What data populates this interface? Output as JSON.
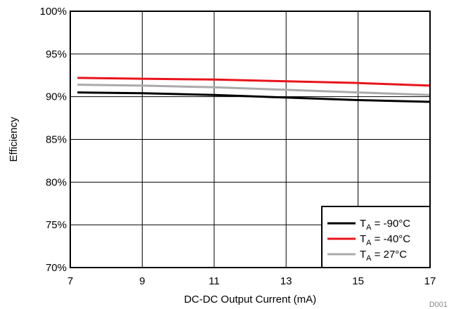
{
  "chart_data": {
    "type": "line",
    "xlabel": "DC-DC Output Current (mA)",
    "ylabel": "Efficiency",
    "xlim": [
      7,
      17
    ],
    "ylim": [
      70,
      100
    ],
    "x_ticks": [
      "7",
      "9",
      "11",
      "13",
      "15",
      "17"
    ],
    "y_ticks": [
      "70%",
      "75%",
      "80%",
      "85%",
      "90%",
      "95%",
      "100%"
    ],
    "grid": true,
    "legend_position": "bottom-right",
    "series": [
      {
        "name": "T_A = -90°C",
        "legend_main": "T",
        "legend_sub": "A",
        "legend_rest": " = -90°C",
        "color": "#000000",
        "x": [
          7.2,
          9,
          11,
          13,
          15,
          17
        ],
        "y": [
          90.5,
          90.4,
          90.2,
          89.9,
          89.6,
          89.4
        ]
      },
      {
        "name": "T_A = -40°C",
        "legend_main": "T",
        "legend_sub": "A",
        "legend_rest": " = -40°C",
        "color": "#e8141b",
        "x": [
          7.2,
          9,
          11,
          13,
          15,
          17
        ],
        "y": [
          92.2,
          92.1,
          92.0,
          91.8,
          91.6,
          91.3
        ]
      },
      {
        "name": "T_A = 27°C",
        "legend_main": "T",
        "legend_sub": "A",
        "legend_rest": " = 27°C",
        "color": "#aaaaaa",
        "x": [
          7.2,
          9,
          11,
          13,
          15,
          17
        ],
        "y": [
          91.4,
          91.3,
          91.1,
          90.8,
          90.5,
          90.2
        ]
      }
    ],
    "footnote": "D001"
  }
}
